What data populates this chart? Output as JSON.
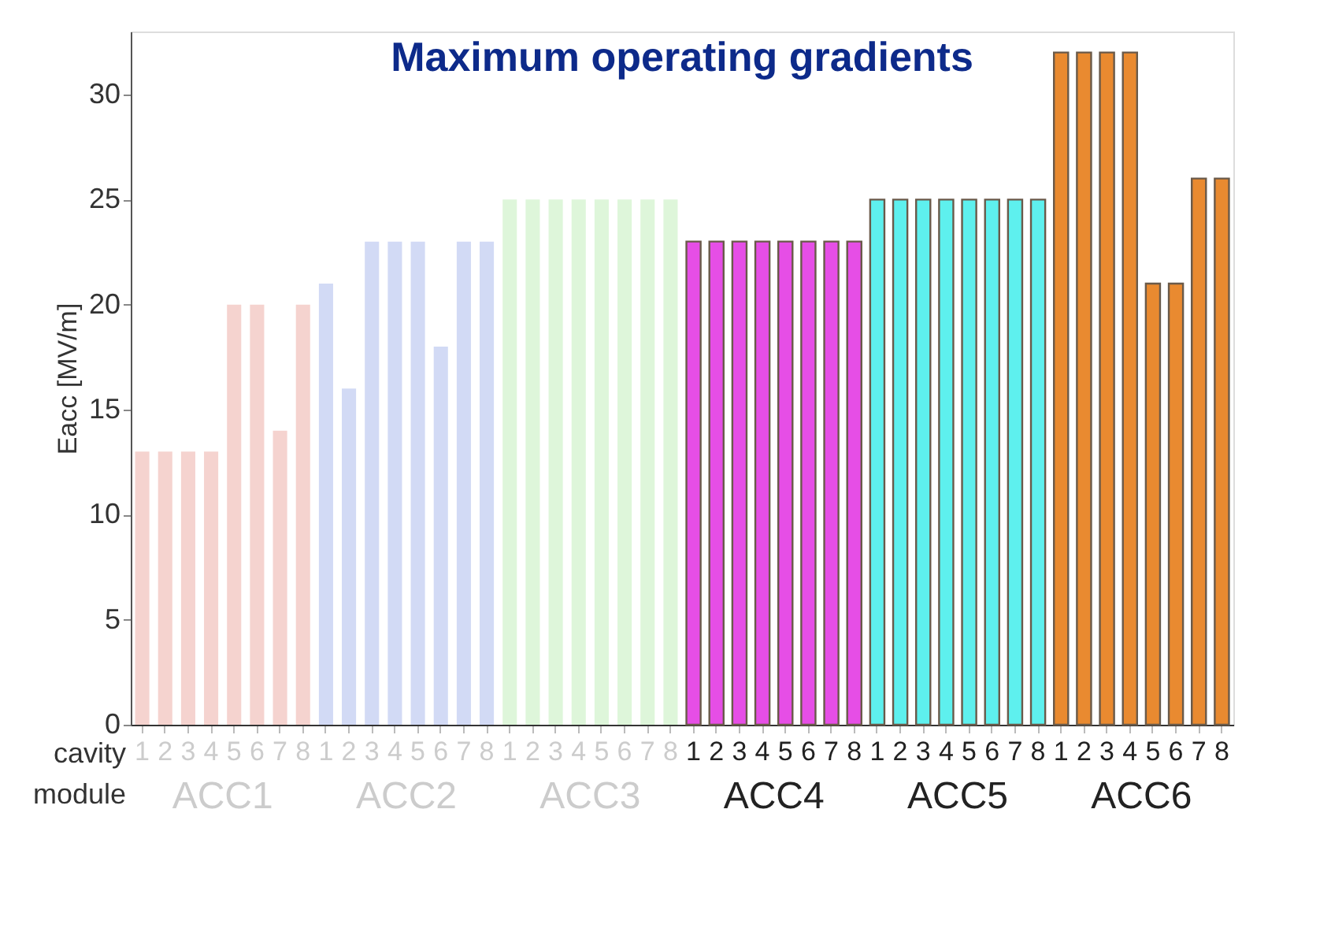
{
  "chart_data": {
    "type": "bar",
    "title": "Maximum operating gradients",
    "ylabel": "Eacc [MV/m]",
    "categories": [
      "1",
      "2",
      "3",
      "4",
      "5",
      "6",
      "7",
      "8",
      "1",
      "2",
      "3",
      "4",
      "5",
      "6",
      "7",
      "8",
      "1",
      "2",
      "3",
      "4",
      "5",
      "6",
      "7",
      "8",
      "1",
      "2",
      "3",
      "4",
      "5",
      "6",
      "7",
      "8",
      "1",
      "2",
      "3",
      "4",
      "5",
      "6",
      "7",
      "8",
      "1",
      "2",
      "3",
      "4",
      "5",
      "6",
      "7",
      "8"
    ],
    "series": [
      {
        "name": "ACC1",
        "color": "#f5d3cf",
        "values": [
          13,
          13,
          13,
          13,
          20,
          20,
          14,
          20,
          null,
          null,
          null,
          null,
          null,
          null,
          null,
          null,
          null,
          null,
          null,
          null,
          null,
          null,
          null,
          null,
          null,
          null,
          null,
          null,
          null,
          null,
          null,
          null,
          null,
          null,
          null,
          null,
          null,
          null,
          null,
          null,
          null,
          null,
          null,
          null,
          null,
          null,
          null,
          null
        ]
      },
      {
        "name": "ACC2",
        "color": "#d2daf5",
        "values": [
          null,
          null,
          null,
          null,
          null,
          null,
          null,
          null,
          21,
          16,
          23,
          23,
          23,
          18,
          23,
          23,
          null,
          null,
          null,
          null,
          null,
          null,
          null,
          null,
          null,
          null,
          null,
          null,
          null,
          null,
          null,
          null,
          null,
          null,
          null,
          null,
          null,
          null,
          null,
          null,
          null,
          null,
          null,
          null,
          null,
          null,
          null,
          null
        ]
      },
      {
        "name": "ACC3",
        "color": "#def6da",
        "values": [
          null,
          null,
          null,
          null,
          null,
          null,
          null,
          null,
          null,
          null,
          null,
          null,
          null,
          null,
          null,
          null,
          25,
          25,
          25,
          25,
          25,
          25,
          25,
          25,
          null,
          null,
          null,
          null,
          null,
          null,
          null,
          null,
          null,
          null,
          null,
          null,
          null,
          null,
          null,
          null,
          null,
          null,
          null,
          null,
          null,
          null,
          null,
          null
        ]
      },
      {
        "name": "ACC4",
        "color": "#e64ee6",
        "values": [
          null,
          null,
          null,
          null,
          null,
          null,
          null,
          null,
          null,
          null,
          null,
          null,
          null,
          null,
          null,
          null,
          null,
          null,
          null,
          null,
          null,
          null,
          null,
          null,
          23,
          23,
          23,
          23,
          23,
          23,
          23,
          23,
          null,
          null,
          null,
          null,
          null,
          null,
          null,
          null,
          null,
          null,
          null,
          null,
          null,
          null,
          null,
          null
        ]
      },
      {
        "name": "ACC5",
        "color": "#5ef0ee",
        "values": [
          null,
          null,
          null,
          null,
          null,
          null,
          null,
          null,
          null,
          null,
          null,
          null,
          null,
          null,
          null,
          null,
          null,
          null,
          null,
          null,
          null,
          null,
          null,
          null,
          null,
          null,
          null,
          null,
          null,
          null,
          null,
          null,
          25,
          25,
          25,
          25,
          25,
          25,
          25,
          25,
          null,
          null,
          null,
          null,
          null,
          null,
          null,
          null
        ]
      },
      {
        "name": "ACC6",
        "color": "#e98a30",
        "values": [
          null,
          null,
          null,
          null,
          null,
          null,
          null,
          null,
          null,
          null,
          null,
          null,
          null,
          null,
          null,
          null,
          null,
          null,
          null,
          null,
          null,
          null,
          null,
          null,
          null,
          null,
          null,
          null,
          null,
          null,
          null,
          null,
          null,
          null,
          null,
          null,
          null,
          null,
          null,
          null,
          32,
          32,
          32,
          32,
          21,
          21,
          26,
          26
        ]
      }
    ],
    "ylim": [
      0,
      33
    ],
    "yticks": [
      0,
      5,
      10,
      15,
      20,
      25,
      30
    ],
    "annotations": [
      "cavity",
      "module"
    ]
  }
}
